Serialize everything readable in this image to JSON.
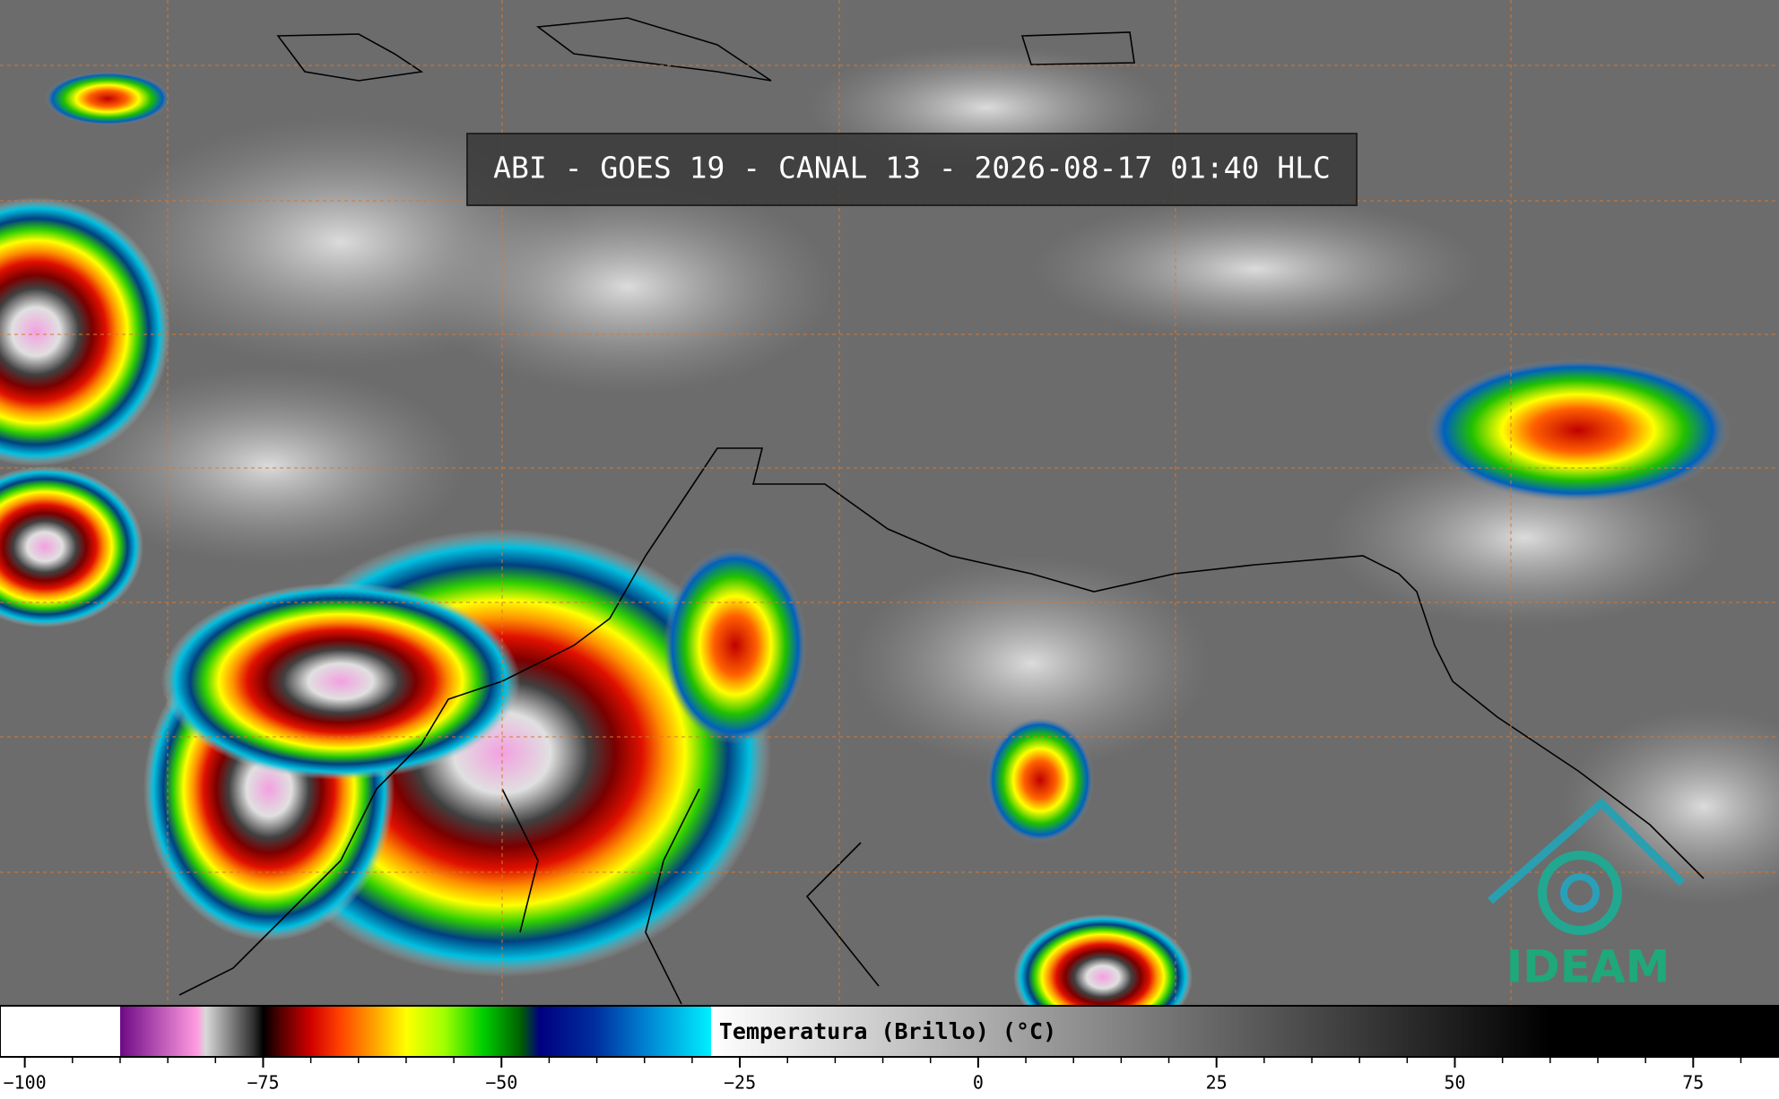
{
  "title": "ABI - GOES 19 - CANAL 13 - 2026-08-17 01:40 HLC",
  "logo": "IDEAM",
  "colorbar": {
    "label": "Temperatura (Brillo) (°C)",
    "xlim": [
      -102.6,
      84
    ],
    "ticks": [
      {
        "value": -100,
        "label": "−100"
      },
      {
        "value": -75,
        "label": "−75"
      },
      {
        "value": -50,
        "label": "−50"
      },
      {
        "value": -25,
        "label": "−25"
      },
      0,
      25,
      50,
      75
    ],
    "minor_ticks": [
      -95,
      -90,
      -85,
      -80,
      -70,
      -65,
      -60,
      -55,
      -45,
      -40,
      -35,
      -30,
      -20,
      -15,
      -10,
      -5,
      5,
      10,
      15,
      20,
      30,
      35,
      40,
      45,
      55,
      60,
      65,
      70,
      80
    ],
    "stops": [
      {
        "value": -102.6,
        "color": "#ffffff"
      },
      {
        "value": -90,
        "color": "#ffffff"
      },
      {
        "value": -90,
        "color": "#6e0a86"
      },
      {
        "value": -82,
        "color": "#ff9ae0"
      },
      {
        "value": -81,
        "color": "#d8d8d8"
      },
      {
        "value": -76,
        "color": "#303030"
      },
      {
        "value": -75,
        "color": "#000000"
      },
      {
        "value": -73,
        "color": "#5a0000"
      },
      {
        "value": -70,
        "color": "#d00000"
      },
      {
        "value": -67,
        "color": "#ff4000"
      },
      {
        "value": -64,
        "color": "#ff9000"
      },
      {
        "value": -60,
        "color": "#ffff00"
      },
      {
        "value": -56,
        "color": "#a0ff00"
      },
      {
        "value": -52,
        "color": "#00d000"
      },
      {
        "value": -48,
        "color": "#006000"
      },
      {
        "value": -46,
        "color": "#000080"
      },
      {
        "value": -40,
        "color": "#0030a0"
      },
      {
        "value": -35,
        "color": "#0080d0"
      },
      {
        "value": -28,
        "color": "#00f0ff"
      },
      {
        "value": -28,
        "color": "#ffffff"
      },
      {
        "value": 60,
        "color": "#000000"
      },
      {
        "value": 84,
        "color": "#000000"
      }
    ]
  }
}
